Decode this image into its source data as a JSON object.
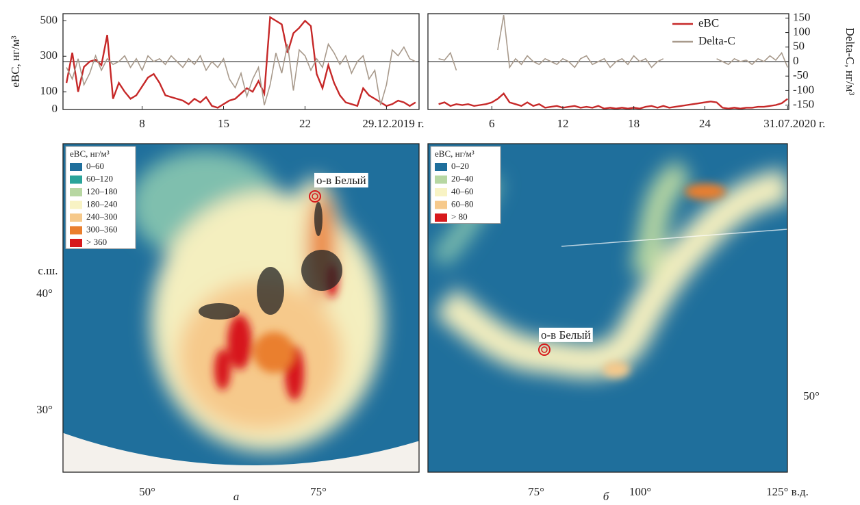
{
  "chart_data": [
    {
      "type": "line",
      "ylabel": "eBC, нг/м³",
      "x": [
        1.5,
        2,
        2.5,
        3,
        3.5,
        4,
        4.5,
        5,
        5.5,
        6,
        6.5,
        7,
        7.5,
        8,
        8.5,
        9,
        9.5,
        10,
        10.5,
        11,
        11.5,
        12,
        12.5,
        13,
        13.5,
        14,
        14.5,
        15,
        15.5,
        16,
        16.5,
        17,
        17.5,
        18,
        18.5,
        19,
        19.5,
        20,
        20.5,
        21,
        21.5,
        22,
        22.5,
        23,
        23.5,
        24,
        24.5,
        25,
        25.5,
        26,
        26.5,
        27,
        27.5,
        28,
        28.5,
        29,
        29.5,
        30,
        30.5,
        31,
        31.5
      ],
      "series": [
        {
          "name": "eBC",
          "color": "#c62828",
          "values": [
            150,
            320,
            100,
            240,
            270,
            280,
            250,
            420,
            60,
            150,
            100,
            60,
            80,
            130,
            180,
            200,
            150,
            80,
            70,
            60,
            50,
            30,
            60,
            40,
            70,
            20,
            10,
            30,
            50,
            60,
            90,
            120,
            100,
            160,
            90,
            520,
            500,
            480,
            320,
            430,
            460,
            500,
            470,
            200,
            120,
            250,
            150,
            80,
            40,
            30,
            20,
            120,
            80,
            60,
            40,
            20,
            30,
            50,
            40,
            20,
            40
          ]
        },
        {
          "name": "Delta-C",
          "color": "#a89a8c",
          "axis": "y2",
          "values": [
            -20,
            -60,
            10,
            -80,
            -40,
            20,
            -30,
            10,
            -10,
            0,
            20,
            -20,
            10,
            -30,
            20,
            0,
            10,
            -10,
            20,
            0,
            -20,
            10,
            -10,
            20,
            -30,
            0,
            -20,
            10,
            -60,
            -90,
            -40,
            -120,
            -60,
            -20,
            -150,
            -80,
            30,
            -40,
            60,
            -100,
            40,
            20,
            -30,
            10,
            -20,
            60,
            30,
            -10,
            20,
            -40,
            0,
            20,
            -60,
            -30,
            -150,
            -80,
            40,
            20,
            50,
            10,
            0
          ]
        }
      ],
      "xlim": [
        1.2,
        31.8
      ],
      "xticks": [
        8,
        15,
        22,
        {
          "value": 29,
          "label": "29.12.2019 г."
        }
      ],
      "ylim": [
        0,
        540
      ],
      "yticks": [
        0,
        100,
        300,
        500
      ],
      "y2lim": [
        -165,
        165
      ],
      "y2_reference_line": 0
    },
    {
      "type": "line",
      "y2label": "Delta-C, нг/м³",
      "legend": "upper right",
      "x": [
        1.5,
        2,
        2.5,
        3,
        3.5,
        4,
        4.5,
        5,
        5.5,
        6,
        6.5,
        7,
        7.5,
        8,
        8.5,
        9,
        9.5,
        10,
        10.5,
        11,
        11.5,
        12,
        12.5,
        13,
        13.5,
        14,
        14.5,
        15,
        15.5,
        16,
        16.5,
        17,
        17.5,
        18,
        18.5,
        19,
        19.5,
        20,
        20.5,
        21,
        21.5,
        22,
        22.5,
        23,
        23.5,
        24,
        24.5,
        25,
        25.5,
        26,
        26.5,
        27,
        27.5,
        28,
        28.5,
        29,
        29.5,
        30,
        30.5,
        31
      ],
      "series": [
        {
          "name": "eBC",
          "color": "#c62828",
          "values": [
            30,
            40,
            20,
            30,
            25,
            30,
            20,
            25,
            30,
            40,
            60,
            90,
            40,
            30,
            20,
            40,
            20,
            30,
            10,
            15,
            20,
            10,
            15,
            20,
            10,
            15,
            10,
            20,
            5,
            10,
            5,
            10,
            5,
            10,
            5,
            15,
            20,
            10,
            20,
            10,
            15,
            20,
            25,
            30,
            35,
            40,
            45,
            40,
            10,
            5,
            10,
            5,
            10,
            10,
            15,
            15,
            20,
            25,
            35,
            60
          ]
        },
        {
          "name": "Delta-C",
          "color": "#a89a8c",
          "axis": "y2",
          "values": [
            10,
            5,
            30,
            -30,
            null,
            null,
            null,
            null,
            null,
            null,
            40,
            160,
            -20,
            10,
            -10,
            20,
            0,
            -10,
            10,
            0,
            -10,
            10,
            0,
            -20,
            10,
            20,
            -10,
            0,
            10,
            -20,
            0,
            10,
            -10,
            20,
            0,
            10,
            -20,
            0,
            10,
            null,
            null,
            null,
            null,
            null,
            null,
            null,
            null,
            10,
            0,
            -10,
            10,
            0,
            5,
            -10,
            10,
            0,
            20,
            5,
            30,
            -20
          ]
        }
      ],
      "xlim": [
        0.6,
        31.1
      ],
      "xticks": [
        6,
        12,
        18,
        24,
        {
          "value": 31,
          "label": "31.07.2020 г."
        }
      ],
      "ylim": [
        0,
        540
      ],
      "y2lim": [
        -165,
        165
      ],
      "y2ticks": [
        -150,
        -100,
        -50,
        0,
        50,
        100,
        150
      ],
      "y2_reference_line": 0
    }
  ],
  "maps": [
    {
      "panel": "а",
      "legend_title": "eBC, нг/м³",
      "place": "о-в Белый",
      "legend": [
        {
          "label": "0–60",
          "color": "#1f6f9c"
        },
        {
          "label": "60–120",
          "color": "#2aa49a"
        },
        {
          "label": "120–180",
          "color": "#b7d7a2"
        },
        {
          "label": "180–240",
          "color": "#f8f3c4"
        },
        {
          "label": "240–300",
          "color": "#f6c98b"
        },
        {
          "label": "300–360",
          "color": "#ea7f2e"
        },
        {
          "label": "> 360",
          "color": "#d7191c"
        }
      ],
      "lat_labels": [
        "с.ш.",
        "40°",
        "30°"
      ],
      "lon_labels": [
        "50°",
        "75°"
      ]
    },
    {
      "panel": "б",
      "legend_title": "eBC, нг/м³",
      "place": "о-в Белый",
      "legend": [
        {
          "label": "0–20",
          "color": "#1f6f9c"
        },
        {
          "label": "20–40",
          "color": "#b7d7a2"
        },
        {
          "label": "40–60",
          "color": "#f8f3c4"
        },
        {
          "label": "60–80",
          "color": "#f6c98b"
        },
        {
          "label": "> 80",
          "color": "#d7191c"
        }
      ],
      "lat_labels": [
        "50°"
      ],
      "lon_labels": [
        "75°",
        "100°",
        "125° в.д."
      ]
    }
  ]
}
